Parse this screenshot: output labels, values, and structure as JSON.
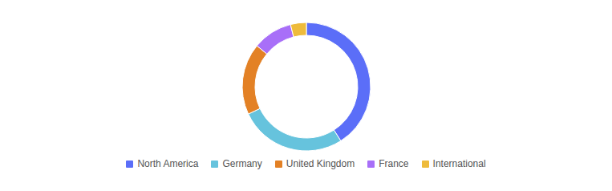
{
  "chart_data": {
    "type": "pie",
    "categories": [
      "North America",
      "Germany",
      "United Kingdom",
      "France",
      "International"
    ],
    "values": [
      41,
      27,
      18,
      10,
      4
    ],
    "colors": [
      "#5b6ef8",
      "#66c3dd",
      "#e38125",
      "#a86ff8",
      "#eebb3b"
    ],
    "legend": "bottom"
  }
}
